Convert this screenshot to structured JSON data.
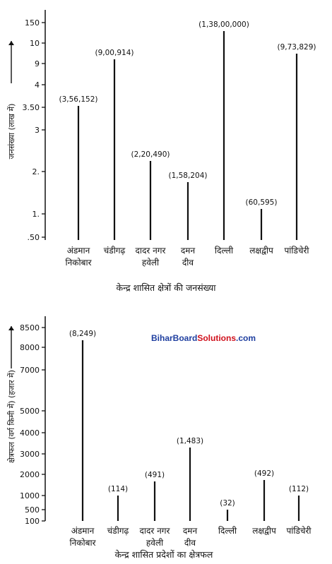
{
  "watermark": {
    "brand": "BiharBoard",
    "solutions": "Solutions",
    "tld": ".com",
    "color_blue": "#1f3fa0",
    "color_red": "#d0101c"
  },
  "chart_data": [
    {
      "type": "bar",
      "title": "केन्द्र शासित क्षेत्रों की जनसंख्या",
      "ylabel": "जनसंख्या (लाख में)",
      "ytick_labels": [
        "150",
        "10",
        "9",
        "4",
        "3.50",
        "3",
        "2.",
        "1.",
        ".50"
      ],
      "categories": [
        [
          "अंडमान",
          "निकोबार"
        ],
        [
          "चंडीगढ़"
        ],
        [
          "दादर नगर",
          "हवेली"
        ],
        [
          "दमन",
          "दीव"
        ],
        [
          "दिल्ली"
        ],
        [
          "लक्षद्वीप"
        ],
        [
          "पांडिचेरी"
        ]
      ],
      "data_labels": [
        "(3,56,152)",
        "(9,00,914)",
        "(2,20,490)",
        "(1,58,204)",
        "(1,38,00,000)",
        "(60,595)",
        "(9,73,829)"
      ],
      "values": [
        356152,
        900914,
        220490,
        158204,
        13800000,
        60595,
        973829
      ]
    },
    {
      "type": "bar",
      "title": "केन्द्र शासित प्रदेशों का क्षेत्रफल",
      "ylabel": "क्षेत्रफल (वर्ग किमी में) (हजार में)",
      "ytick_labels": [
        "8500",
        "8000",
        "7000",
        "5000",
        "4000",
        "3000",
        "2000",
        "1000",
        "500",
        "100"
      ],
      "categories": [
        [
          "अंडमान",
          "निकोबार"
        ],
        [
          "चंडीगढ़"
        ],
        [
          "दादर नगर",
          "हवेली"
        ],
        [
          "दमन",
          "दीव"
        ],
        [
          "दिल्ली"
        ],
        [
          "लक्षद्वीप"
        ],
        [
          "पांडिचेरी"
        ]
      ],
      "data_labels": [
        "(8,249)",
        "(114)",
        "(491)",
        "(1,483)",
        "(32)",
        "(492)",
        "(112)"
      ],
      "values": [
        8249,
        114,
        491,
        1483,
        32,
        492,
        112
      ]
    }
  ]
}
